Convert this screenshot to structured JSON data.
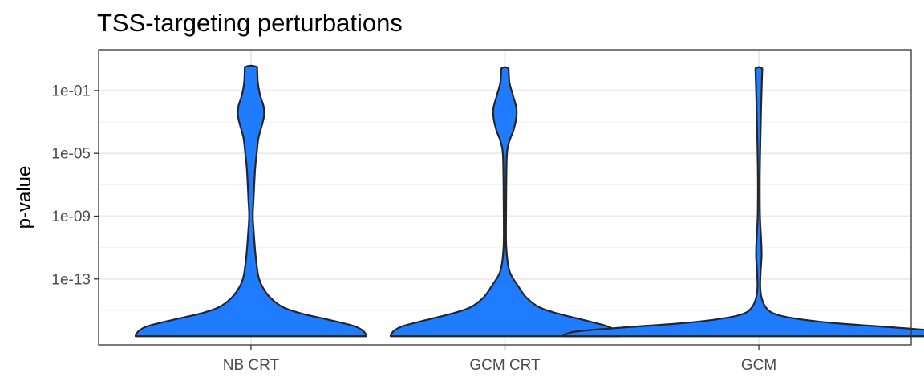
{
  "chart_data": {
    "type": "violin",
    "title": "TSS-targeting perturbations",
    "xlabel": "",
    "ylabel": "p-value",
    "y_scale": "log10",
    "ylim_log10": [
      -17.2,
      1.6
    ],
    "y_ticks": [
      {
        "value_log10": -1,
        "label": "1e-01"
      },
      {
        "value_log10": -5,
        "label": "1e-05"
      },
      {
        "value_log10": -9,
        "label": "1e-09"
      },
      {
        "value_log10": -13,
        "label": "1e-13"
      }
    ],
    "y_minor_ticks_log10": [
      -3,
      -7,
      -11,
      -15
    ],
    "categories": [
      "NB CRT",
      "GCM CRT",
      "GCM"
    ],
    "fill_color": "#1f7bff",
    "outline_color": "#262626",
    "series": [
      {
        "name": "NB CRT",
        "max_half_width": 1.0,
        "density_profile": [
          {
            "y": -16.65,
            "w": 0.0
          },
          {
            "y": -16.6,
            "w": 0.505
          },
          {
            "y": -16.3,
            "w": 0.49
          },
          {
            "y": -16.0,
            "w": 0.45
          },
          {
            "y": -15.6,
            "w": 0.34
          },
          {
            "y": -15.2,
            "w": 0.22
          },
          {
            "y": -14.8,
            "w": 0.14
          },
          {
            "y": -14.2,
            "w": 0.085
          },
          {
            "y": -13.5,
            "w": 0.05
          },
          {
            "y": -12.8,
            "w": 0.032
          },
          {
            "y": -11.5,
            "w": 0.02
          },
          {
            "y": -10.0,
            "w": 0.012
          },
          {
            "y": -9.0,
            "w": 0.008
          },
          {
            "y": -8.0,
            "w": 0.011
          },
          {
            "y": -6.0,
            "w": 0.018
          },
          {
            "y": -5.0,
            "w": 0.025
          },
          {
            "y": -4.0,
            "w": 0.033
          },
          {
            "y": -3.2,
            "w": 0.048
          },
          {
            "y": -2.6,
            "w": 0.057
          },
          {
            "y": -2.0,
            "w": 0.055
          },
          {
            "y": -1.3,
            "w": 0.04
          },
          {
            "y": -0.5,
            "w": 0.03
          },
          {
            "y": 0.5,
            "w": 0.027
          },
          {
            "y": 0.6,
            "w": 0.0
          }
        ]
      },
      {
        "name": "GCM CRT",
        "max_half_width": 1.0,
        "density_profile": [
          {
            "y": -16.65,
            "w": 0.0
          },
          {
            "y": -16.6,
            "w": 0.5
          },
          {
            "y": -16.3,
            "w": 0.485
          },
          {
            "y": -16.0,
            "w": 0.445
          },
          {
            "y": -15.6,
            "w": 0.34
          },
          {
            "y": -15.2,
            "w": 0.23
          },
          {
            "y": -14.8,
            "w": 0.15
          },
          {
            "y": -14.2,
            "w": 0.095
          },
          {
            "y": -13.5,
            "w": 0.06
          },
          {
            "y": -12.5,
            "w": 0.02
          },
          {
            "y": -11.0,
            "w": 0.006
          },
          {
            "y": -9.0,
            "w": 0.005
          },
          {
            "y": -7.0,
            "w": 0.006
          },
          {
            "y": -5.0,
            "w": 0.009
          },
          {
            "y": -4.2,
            "w": 0.02
          },
          {
            "y": -3.5,
            "w": 0.038
          },
          {
            "y": -2.7,
            "w": 0.05
          },
          {
            "y": -2.1,
            "w": 0.05
          },
          {
            "y": -1.3,
            "w": 0.035
          },
          {
            "y": -0.5,
            "w": 0.02
          },
          {
            "y": 0.4,
            "w": 0.016
          },
          {
            "y": 0.5,
            "w": 0.0
          }
        ]
      },
      {
        "name": "GCM",
        "max_half_width": 1.0,
        "density_profile": [
          {
            "y": -16.65,
            "w": 0.0
          },
          {
            "y": -16.6,
            "w": 0.855
          },
          {
            "y": -16.35,
            "w": 0.8
          },
          {
            "y": -16.1,
            "w": 0.6
          },
          {
            "y": -15.8,
            "w": 0.32
          },
          {
            "y": -15.5,
            "w": 0.15
          },
          {
            "y": -15.2,
            "w": 0.065
          },
          {
            "y": -14.8,
            "w": 0.03
          },
          {
            "y": -14.2,
            "w": 0.012
          },
          {
            "y": -13.5,
            "w": 0.006
          },
          {
            "y": -12.5,
            "w": 0.008
          },
          {
            "y": -11.5,
            "w": 0.012
          },
          {
            "y": -10.5,
            "w": 0.01
          },
          {
            "y": -9.0,
            "w": 0.005
          },
          {
            "y": -7.0,
            "w": 0.004
          },
          {
            "y": -5.5,
            "w": 0.005
          },
          {
            "y": -4.0,
            "w": 0.007
          },
          {
            "y": -2.0,
            "w": 0.01
          },
          {
            "y": -0.5,
            "w": 0.013
          },
          {
            "y": 0.4,
            "w": 0.015
          },
          {
            "y": 0.5,
            "w": 0.0
          }
        ]
      }
    ]
  }
}
